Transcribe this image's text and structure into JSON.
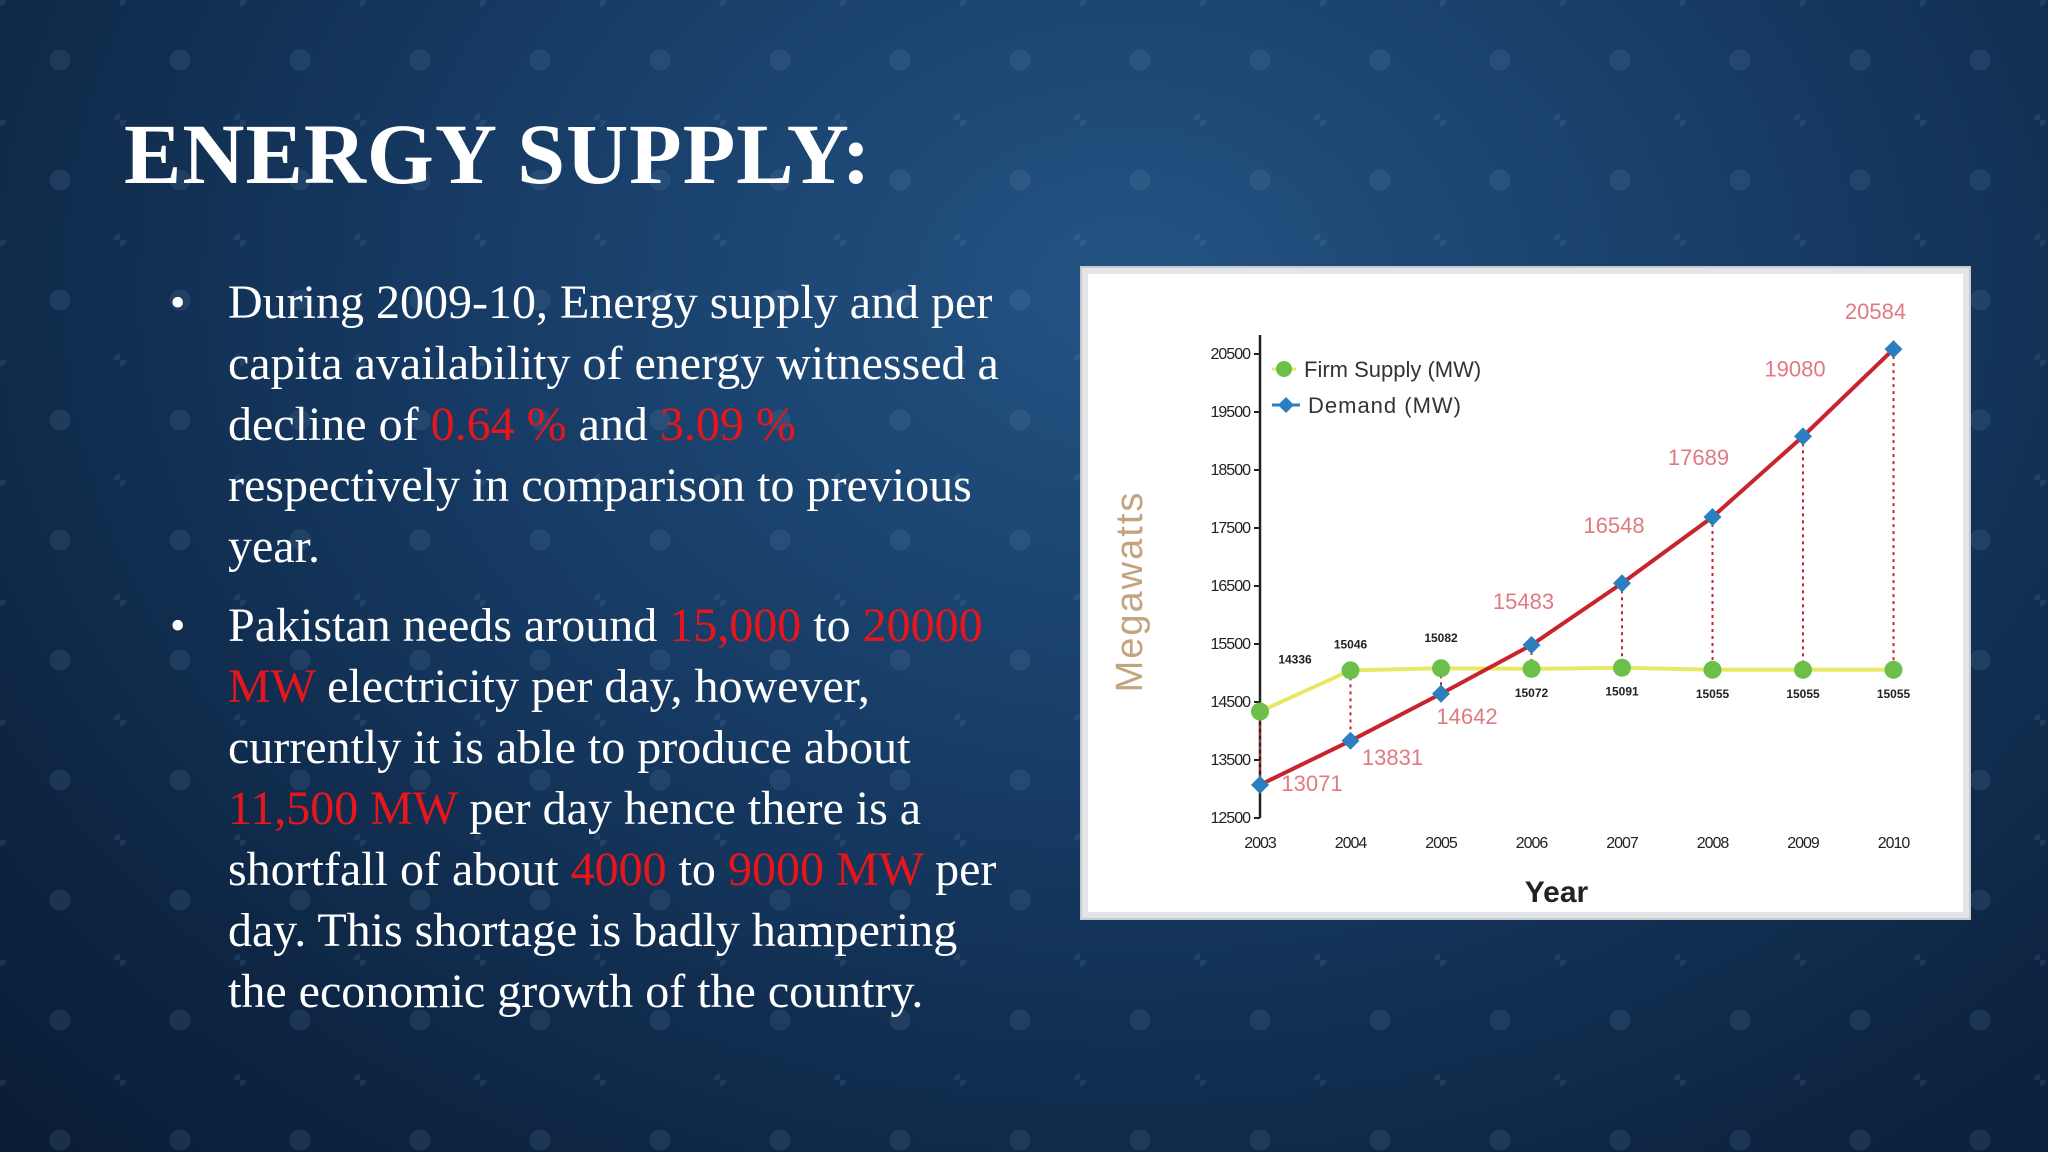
{
  "slide": {
    "title": "ENERGY SUPPLY:",
    "bullet_char": "•",
    "bullets": [
      [
        {
          "t": "During 2009-10, Energy supply and per capita availability of energy witnessed a decline of ",
          "hl": false
        },
        {
          "t": "0.64 %",
          "hl": true
        },
        {
          "t": " and ",
          "hl": false
        },
        {
          "t": "3.09 %",
          "hl": true
        },
        {
          "t": " respectively in comparison to previous year.",
          "hl": false
        }
      ],
      [
        {
          "t": " Pakistan needs around ",
          "hl": false
        },
        {
          "t": "15,000",
          "hl": true
        },
        {
          "t": " to ",
          "hl": false
        },
        {
          "t": "20000 MW",
          "hl": true
        },
        {
          "t": " electricity per day, however, currently it is able to produce about ",
          "hl": false
        },
        {
          "t": "11,500 MW",
          "hl": true
        },
        {
          "t": " per day hence there is a shortfall of about ",
          "hl": false
        },
        {
          "t": "4000",
          "hl": true
        },
        {
          "t": " to ",
          "hl": false
        },
        {
          "t": "9000 MW",
          "hl": true
        },
        {
          "t": " per day. This shortage is badly hampering the economic growth of the country.",
          "hl": false
        }
      ]
    ],
    "colors": {
      "highlight": "#e8161b",
      "text": "#ffffff"
    }
  },
  "chart_data": {
    "type": "line",
    "title": "",
    "xlabel": "Year",
    "ylabel": "Megawatts",
    "x": [
      "2003",
      "2004",
      "2005",
      "2006",
      "2007",
      "2008",
      "2009",
      "2010"
    ],
    "ylim": [
      12500,
      21000
    ],
    "yticks": [
      12500,
      13500,
      14500,
      15500,
      16500,
      17500,
      18500,
      19500,
      20500
    ],
    "legend_position": "top-left",
    "grid": false,
    "series": [
      {
        "name": "Firm Supply (MW)",
        "values": [
          14336,
          15046,
          15082,
          15072,
          15091,
          15055,
          15055,
          15055
        ],
        "labels": [
          "14336",
          "15046",
          "15082",
          "15072",
          "15091",
          "15055",
          "15055",
          "15055"
        ],
        "line_color": "#e8e866",
        "marker_color": "#6cc04a"
      },
      {
        "name": "Demand (MW)",
        "values": [
          13071,
          13831,
          14642,
          15483,
          16548,
          17689,
          19080,
          20584
        ],
        "labels": [
          "13071",
          "13831",
          "14642",
          "15483",
          "16548",
          "17689",
          "19080",
          "20584"
        ],
        "line_color": "#c8242b",
        "marker_color": "#2b7fc0",
        "label_color": "#e07a80"
      }
    ]
  }
}
